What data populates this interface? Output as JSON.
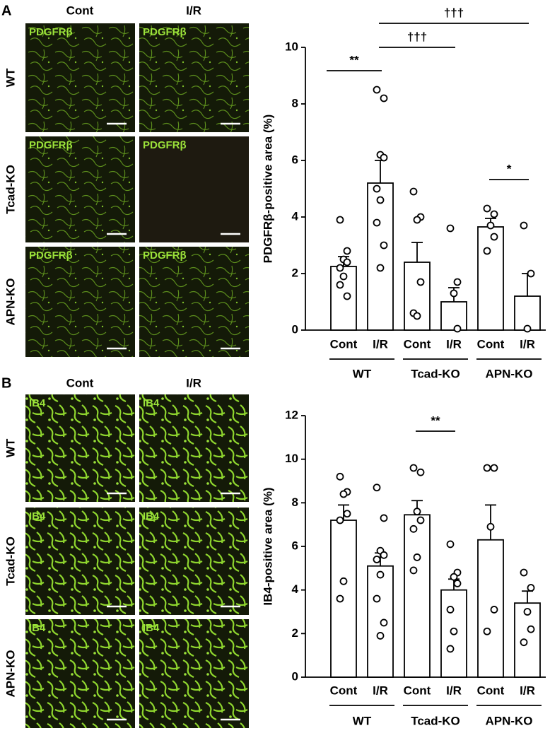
{
  "panels": [
    {
      "letter": "A",
      "columns": [
        "Cont",
        "I/R"
      ],
      "rows": [
        "WT",
        "Tcad-KO",
        "APN-KO"
      ],
      "stain": "PDGFRβ"
    },
    {
      "letter": "B",
      "columns": [
        "Cont",
        "I/R"
      ],
      "rows": [
        "WT",
        "Tcad-KO",
        "APN-KO"
      ],
      "stain": "IB4"
    }
  ],
  "chart_data": [
    {
      "type": "bar",
      "y_label": "PDGFRβ-positive area (%)",
      "categories": [
        "Cont",
        "I/R",
        "Cont",
        "I/R",
        "Cont",
        "I/R"
      ],
      "groups": [
        "WT",
        "Tcad-KO",
        "APN-KO"
      ],
      "values": [
        2.25,
        5.2,
        2.4,
        1.0,
        3.65,
        1.2
      ],
      "errors": [
        0.35,
        0.8,
        0.7,
        0.5,
        0.3,
        0.8
      ],
      "points": [
        [
          3.9,
          2.8,
          2.5,
          2.4,
          2.2,
          1.9,
          1.6,
          1.2
        ],
        [
          8.5,
          8.2,
          6.2,
          6.1,
          5.0,
          4.6,
          3.8,
          3.0,
          2.2
        ],
        [
          4.9,
          4.0,
          3.9,
          1.7,
          0.6,
          0.5
        ],
        [
          3.6,
          1.7,
          1.3,
          0.05
        ],
        [
          4.3,
          4.1,
          3.7,
          3.3,
          2.8
        ],
        [
          3.7,
          2.0,
          0.05
        ]
      ],
      "annotations": [
        "**",
        "†††",
        "†††",
        "*"
      ],
      "ylim": [
        0,
        10
      ],
      "yticks": [
        0,
        2,
        4,
        6,
        8,
        10
      ],
      "color": "#ffffff"
    },
    {
      "type": "bar",
      "y_label": "IB4-positive area (%)",
      "categories": [
        "Cont",
        "I/R",
        "Cont",
        "I/R",
        "Cont",
        "I/R"
      ],
      "groups": [
        "WT",
        "Tcad-KO",
        "APN-KO"
      ],
      "values": [
        7.2,
        5.1,
        7.45,
        4.0,
        6.3,
        3.4
      ],
      "errors": [
        0.7,
        0.6,
        0.65,
        0.5,
        1.6,
        0.55
      ],
      "points": [
        [
          9.2,
          8.5,
          8.4,
          7.5,
          7.2,
          4.4,
          3.6
        ],
        [
          8.7,
          7.3,
          5.8,
          5.6,
          5.4,
          4.7,
          3.6,
          2.5,
          1.9
        ],
        [
          9.6,
          9.4,
          7.6,
          7.2,
          6.8,
          5.5,
          4.9
        ],
        [
          6.1,
          4.8,
          4.6,
          4.3,
          3.1,
          2.1,
          1.3
        ],
        [
          9.6,
          9.6,
          6.9,
          3.1,
          2.1
        ],
        [
          4.8,
          4.1,
          3.0,
          2.2,
          1.6
        ]
      ],
      "annotations": [
        "**"
      ],
      "ylim": [
        0,
        12
      ],
      "yticks": [
        0,
        2,
        4,
        6,
        8,
        10,
        12
      ],
      "color": "#ffffff"
    }
  ]
}
